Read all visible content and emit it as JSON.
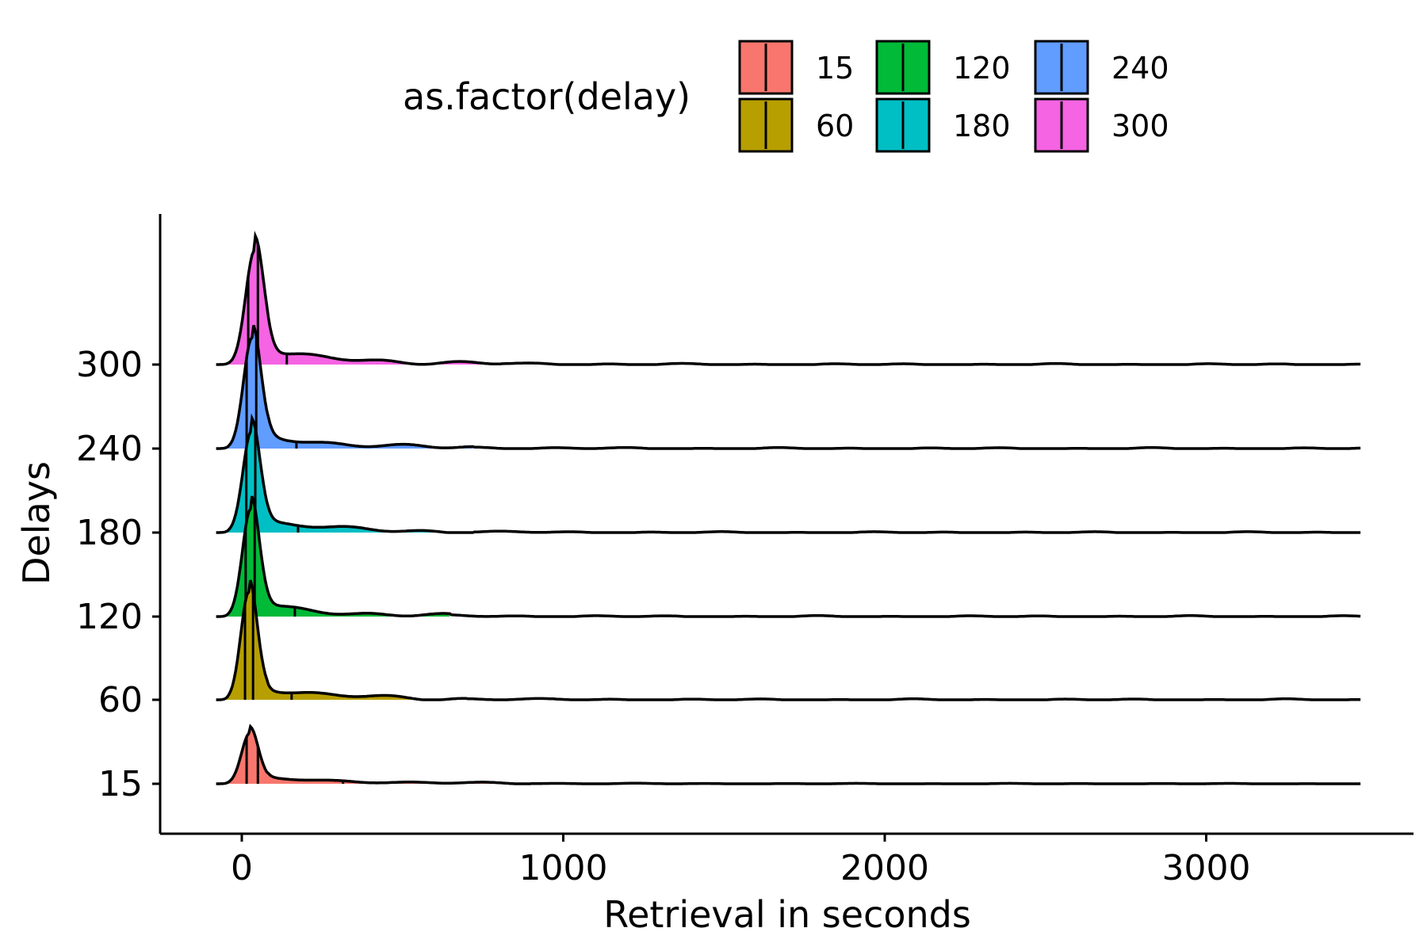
{
  "chart_data": {
    "type": "ridgeline",
    "xlabel": "Retrieval in seconds",
    "ylabel": "Delays",
    "xlim": [
      -260,
      3650
    ],
    "x_ticks": [
      0,
      1000,
      2000,
      3000
    ],
    "x_tick_labels": [
      "0",
      "1000",
      "2000",
      "3000"
    ],
    "categories": [
      "15",
      "60",
      "120",
      "180",
      "240",
      "300"
    ],
    "legend": {
      "title": "as.factor(delay)",
      "position": "top",
      "entries": [
        {
          "label": "15",
          "color": "#F8766D"
        },
        {
          "label": "60",
          "color": "#B79F00"
        },
        {
          "label": "120",
          "color": "#00BA38"
        },
        {
          "label": "180",
          "color": "#00BFC4"
        },
        {
          "label": "240",
          "color": "#619CFF"
        },
        {
          "label": "300",
          "color": "#F564E3"
        }
      ]
    },
    "grid": false,
    "series": [
      {
        "name": "15",
        "color": "#F8766D",
        "peak_x": 25,
        "peak_height": 0.8,
        "tail_extent": 900,
        "quantiles": [
          15,
          50,
          315
        ]
      },
      {
        "name": "60",
        "color": "#B79F00",
        "peak_x": 22,
        "peak_height": 1.7,
        "tail_extent": 700,
        "quantiles": [
          10,
          35,
          155
        ]
      },
      {
        "name": "120",
        "color": "#00BA38",
        "peak_x": 28,
        "peak_height": 1.7,
        "tail_extent": 650,
        "quantiles": [
          12,
          40,
          165
        ]
      },
      {
        "name": "180",
        "color": "#00BFC4",
        "peak_x": 30,
        "peak_height": 1.6,
        "tail_extent": 720,
        "quantiles": [
          14,
          42,
          175
        ]
      },
      {
        "name": "240",
        "color": "#619CFF",
        "peak_x": 32,
        "peak_height": 1.75,
        "tail_extent": 720,
        "quantiles": [
          15,
          45,
          170
        ]
      },
      {
        "name": "300",
        "color": "#F564E3",
        "peak_x": 40,
        "peak_height": 1.8,
        "tail_extent": 810,
        "quantiles": [
          20,
          50,
          140
        ]
      }
    ]
  }
}
